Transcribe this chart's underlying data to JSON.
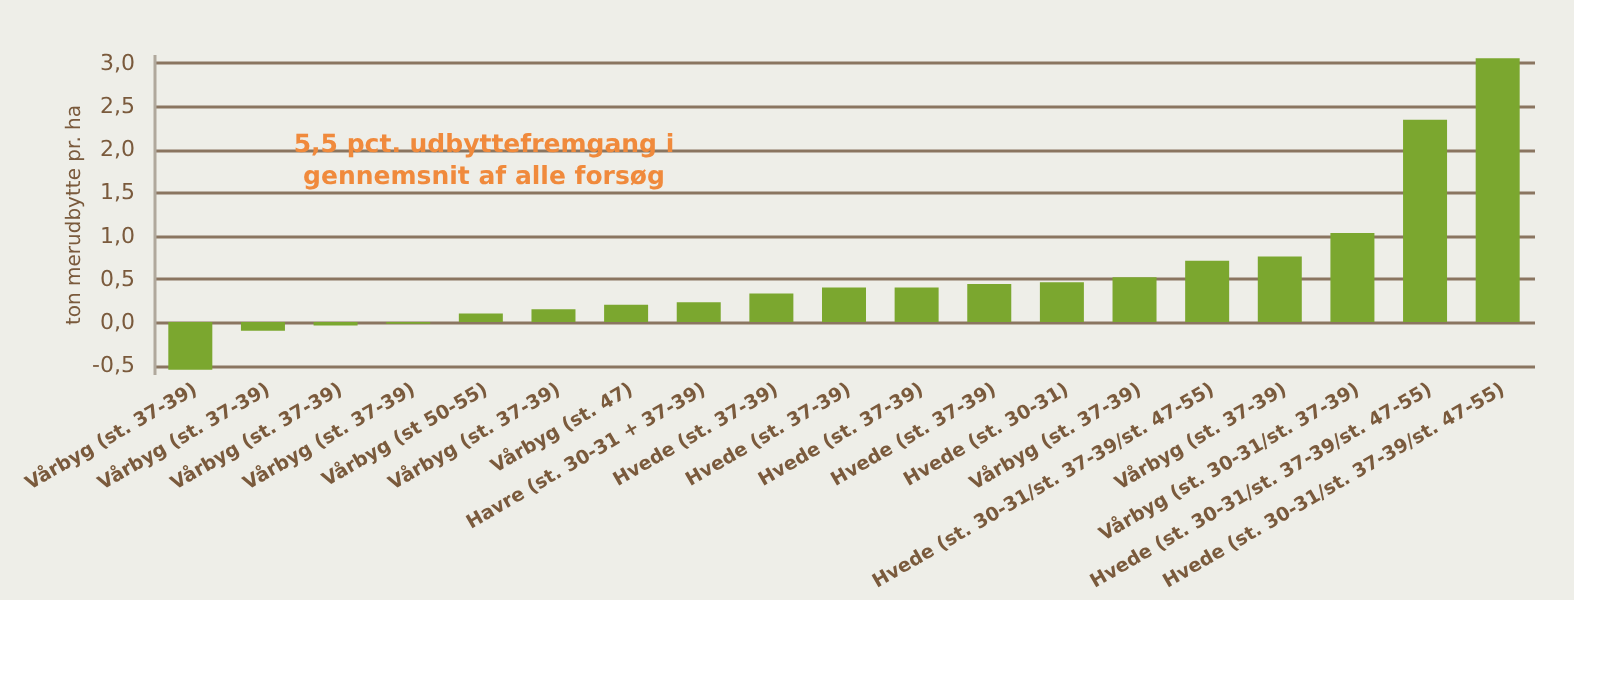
{
  "chart_data": {
    "type": "bar",
    "ylabel": "ton merudbytte pr. ha",
    "categories": [
      "Vårbyg (st. 37-39)",
      "Vårbyg (st. 37-39)",
      "Vårbyg (st. 37-39)",
      "Vårbyg (st. 37-39)",
      "Vårbyg (st 50-55)",
      "Vårbyg (st. 37-39)",
      "Vårbyg (st. 47)",
      "Havre (st. 30-31 + 37-39)",
      "Hvede (st. 37-39)",
      "Hvede (st. 37-39)",
      "Hvede (st. 37-39)",
      "Hvede (st. 37-39)",
      "Hvede (st. 30-31)",
      "Vårbyg (st. 37-39)",
      "Hvede (st. 30-31/st. 37-39/st. 47-55)",
      "Vårbyg (st. 37-39)",
      "Vårbyg (st. 30-31/st. 37-39)",
      "Hvede (st. 30-31/st. 37-39/st. 47-55)",
      "Hvede (st. 30-31/st. 37-39/st. 47-55)"
    ],
    "values": [
      -0.55,
      -0.1,
      -0.04,
      -0.02,
      0.1,
      0.15,
      0.2,
      0.23,
      0.33,
      0.4,
      0.4,
      0.44,
      0.46,
      0.52,
      0.71,
      0.76,
      1.03,
      2.34,
      3.05
    ],
    "color": "#7ba72f",
    "ylim": [
      -0.6,
      3.1
    ],
    "yticks": [
      {
        "value": -0.5,
        "label": "-0,5"
      },
      {
        "value": 0,
        "label": "0,0"
      },
      {
        "value": 0.5,
        "label": "0,5"
      },
      {
        "value": 1,
        "label": "1,0"
      },
      {
        "value": 1.5,
        "label": "1,5"
      },
      {
        "value": 2,
        "label": "2,0"
      },
      {
        "value": 2.5,
        "label": "2,5"
      },
      {
        "value": 3,
        "label": "3,0"
      }
    ],
    "grid": "y",
    "annotations": [
      "5,5 pct. udbyttefremgang i\ngennemsnit af alle forsøg"
    ]
  }
}
